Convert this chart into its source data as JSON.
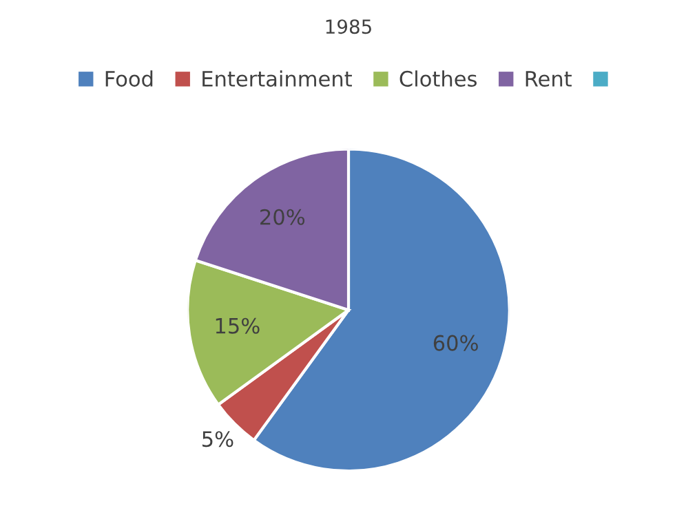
{
  "chart_data": {
    "type": "pie",
    "title": "1985",
    "categories": [
      "Food",
      "Entertainment",
      "Clothes",
      "Rent",
      null
    ],
    "values": [
      60,
      5,
      15,
      20,
      0
    ],
    "colors": [
      "#4f81bd",
      "#c0504d",
      "#9bbb59",
      "#8064a2",
      "#4bacc6"
    ],
    "value_labels": [
      "60%",
      "5%",
      "15%",
      "20%",
      null
    ],
    "legend": "top"
  }
}
